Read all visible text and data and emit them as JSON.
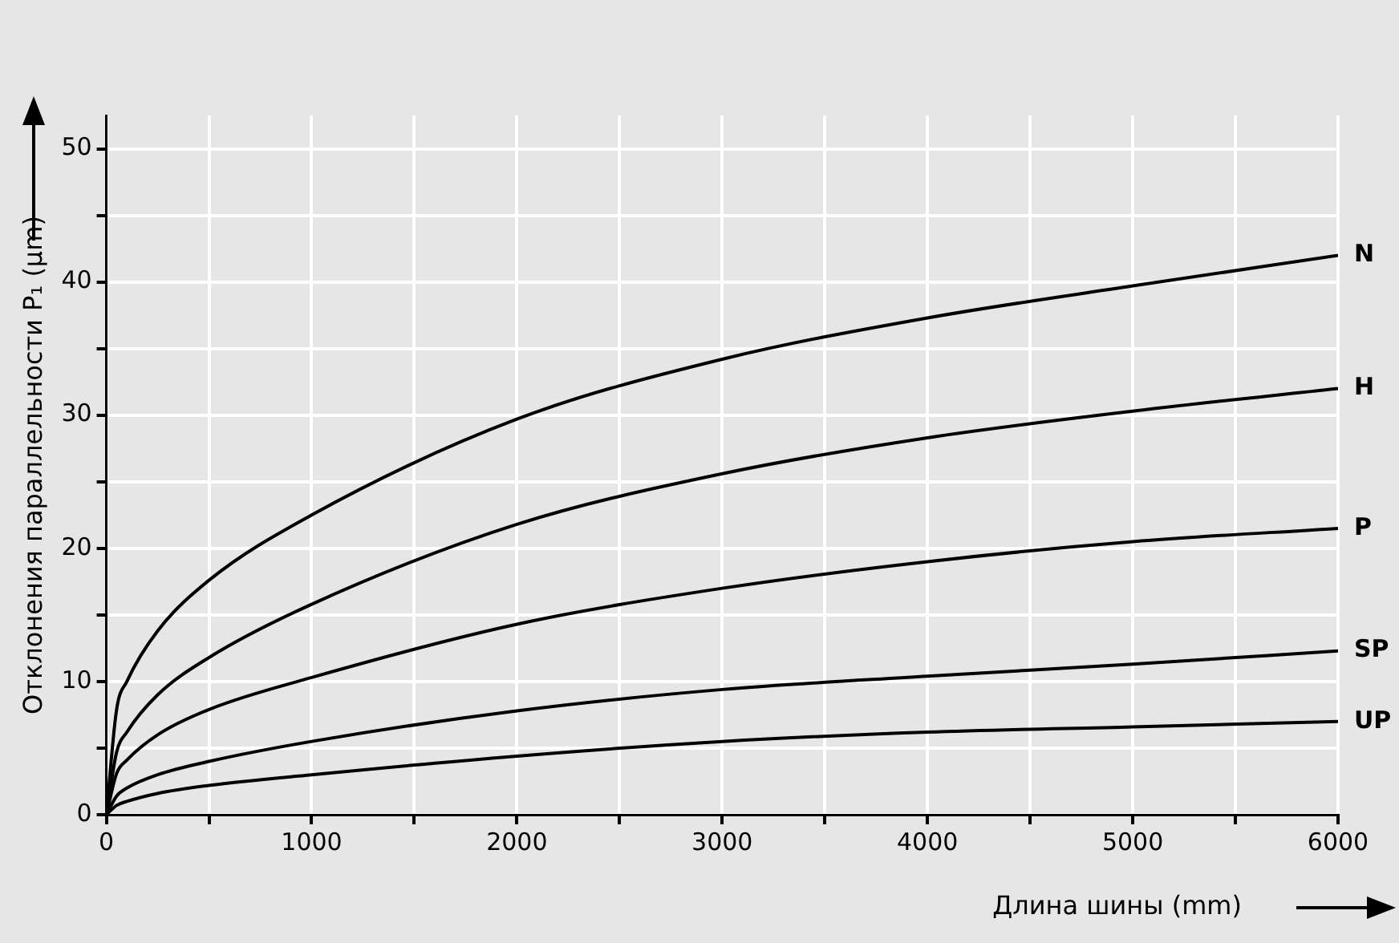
{
  "chart_data": {
    "type": "line",
    "xlabel": "Длина шины (mm)",
    "ylabel": "Отклонения параллельности P₁ (µm)",
    "x": [
      0,
      50,
      100,
      250,
      500,
      1000,
      2000,
      3000,
      4000,
      5000,
      6000
    ],
    "xlim": [
      0,
      6000
    ],
    "ylim": [
      0,
      52.5
    ],
    "xticks": [
      0,
      {
        "value": 500,
        "label": null
      },
      1000,
      {
        "value": 1500,
        "label": null
      },
      2000,
      {
        "value": 2500,
        "label": null
      },
      3000,
      {
        "value": 3500,
        "label": null
      },
      4000,
      {
        "value": 4500,
        "label": null
      },
      5000,
      {
        "value": 5500,
        "label": null
      },
      6000
    ],
    "yticks": [
      0,
      {
        "value": 5,
        "label": null
      },
      10,
      {
        "value": 15,
        "label": null
      },
      20,
      {
        "value": 25,
        "label": null
      },
      30,
      {
        "value": 35,
        "label": null
      },
      40,
      {
        "value": 45,
        "label": null
      },
      50
    ],
    "series": [
      {
        "name": "N",
        "color": "#000000",
        "values": [
          0,
          7.9,
          10,
          13.8,
          17.6,
          22.5,
          29.7,
          34.2,
          37.3,
          39.7,
          42
        ]
      },
      {
        "name": "H",
        "color": "#000000",
        "values": [
          0,
          4.7,
          6.2,
          9,
          11.8,
          15.8,
          21.8,
          25.6,
          28.3,
          30.3,
          32
        ]
      },
      {
        "name": "P",
        "color": "#000000",
        "values": [
          0,
          3.1,
          4.1,
          6,
          7.9,
          10.3,
          14.3,
          17,
          19,
          20.5,
          21.5
        ]
      },
      {
        "name": "SP",
        "color": "#000000",
        "values": [
          0,
          1.4,
          2,
          3,
          4,
          5.5,
          7.8,
          9.4,
          10.4,
          11.3,
          12.3
        ]
      },
      {
        "name": "UP",
        "color": "#000000",
        "values": [
          0,
          0.7,
          1,
          1.6,
          2.2,
          3,
          4.4,
          5.5,
          6.2,
          6.6,
          7
        ]
      }
    ],
    "grid": true,
    "legend": false,
    "marker": "none",
    "line_style": "solid"
  }
}
